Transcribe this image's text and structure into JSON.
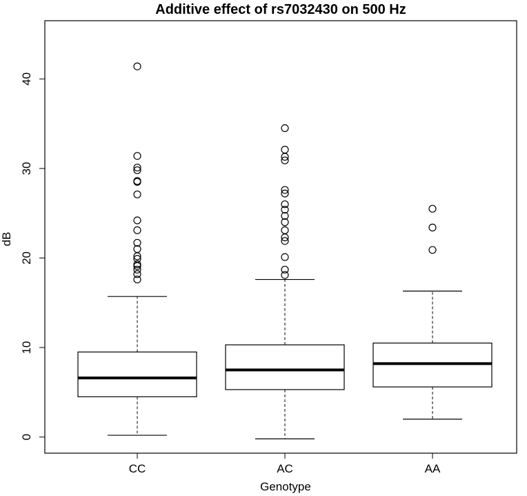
{
  "chart_data": {
    "type": "boxplot",
    "title": "Additive effect of rs7032430 on 500 Hz",
    "xlabel": "Genotype",
    "ylabel": "dB",
    "ylim": [
      -1.8,
      46.5
    ],
    "yticks": [
      0,
      10,
      20,
      30,
      40
    ],
    "grid": false,
    "categories": [
      "CC",
      "AC",
      "AA"
    ],
    "boxes": [
      {
        "category": "CC",
        "whisker_low": 0.2,
        "q1": 4.5,
        "median": 6.6,
        "q3": 9.5,
        "whisker_high": 15.7,
        "outliers": [
          17.6,
          18.2,
          18.7,
          19.1,
          19.3,
          19.9,
          20.2,
          21.0,
          21.7,
          23.1,
          24.2,
          27.1,
          28.5,
          28.6,
          29.8,
          30.1,
          31.4,
          41.4
        ]
      },
      {
        "category": "AC",
        "whisker_low": -0.2,
        "q1": 5.3,
        "median": 7.5,
        "q3": 10.3,
        "whisker_high": 17.6,
        "outliers": [
          18.1,
          18.7,
          20.1,
          21.9,
          22.3,
          23.1,
          24.0,
          24.7,
          25.4,
          26.0,
          27.2,
          27.6,
          30.9,
          31.3,
          32.1,
          34.5
        ]
      },
      {
        "category": "AA",
        "whisker_low": 2.0,
        "q1": 5.6,
        "median": 8.2,
        "q3": 10.5,
        "whisker_high": 16.3,
        "outliers": [
          20.9,
          23.4,
          25.5
        ]
      }
    ]
  }
}
